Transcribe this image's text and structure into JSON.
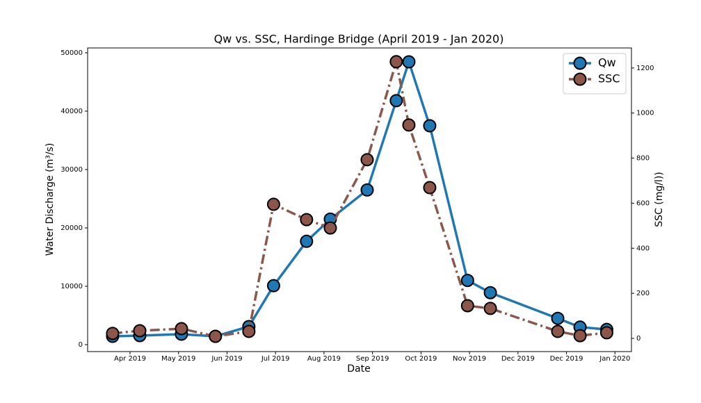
{
  "chart_data": {
    "type": "line",
    "title": "Qw vs. SSC, Hardinge Bridge (April 2019 - Jan 2020)",
    "x_label": "Date",
    "y_label": "Water Discharge (m³/s)",
    "y2_label": "SSC (mg/l))",
    "x": [
      -0.36,
      0.2,
      1.06,
      1.76,
      2.45,
      2.96,
      3.64,
      4.13,
      4.89,
      5.49,
      5.75,
      6.18,
      6.96,
      7.43,
      8.82,
      9.28,
      9.83
    ],
    "series": [
      {
        "name": "Qw",
        "color": "#1f77b4",
        "dash": "solid",
        "values": [
          1430,
          1550,
          1790,
          1430,
          3100,
          10100,
          17700,
          21500,
          26500,
          41800,
          48450,
          37500,
          11000,
          8900,
          4500,
          3000,
          2600
        ]
      },
      {
        "name": "SSC",
        "color": "#8c564b",
        "dash": "dashdot",
        "axis": "y2",
        "values": [
          22,
          34,
          43,
          9,
          31,
          595,
          527,
          490,
          793,
          1228,
          947,
          669,
          145,
          133,
          31,
          12,
          25
        ]
      }
    ],
    "xlim": [
      -0.875,
      10.34
    ],
    "xticks": [
      {
        "value": 0,
        "label": "Apr 2019"
      },
      {
        "value": 1,
        "label": "May 2019"
      },
      {
        "value": 2,
        "label": "Jun 2019"
      },
      {
        "value": 3,
        "label": "Jul 2019"
      },
      {
        "value": 4,
        "label": "Aug 2019"
      },
      {
        "value": 5,
        "label": "Sep 2019"
      },
      {
        "value": 6,
        "label": "Oct 2019"
      },
      {
        "value": 7,
        "label": "Nov 2019"
      },
      {
        "value": 8,
        "label": "Dec 2019"
      },
      {
        "value": 9,
        "label": "Dec 2019"
      },
      {
        "value": 10,
        "label": "Jan 2020"
      }
    ],
    "ylim": [
      -1190,
      50830
    ],
    "yticks": [
      0,
      10000,
      20000,
      30000,
      40000,
      50000
    ],
    "y2lim": [
      -58.6,
      1289
    ],
    "y2ticks": [
      0,
      200,
      400,
      600,
      800,
      1000,
      1200
    ],
    "grid": false,
    "legend": "upper right"
  }
}
